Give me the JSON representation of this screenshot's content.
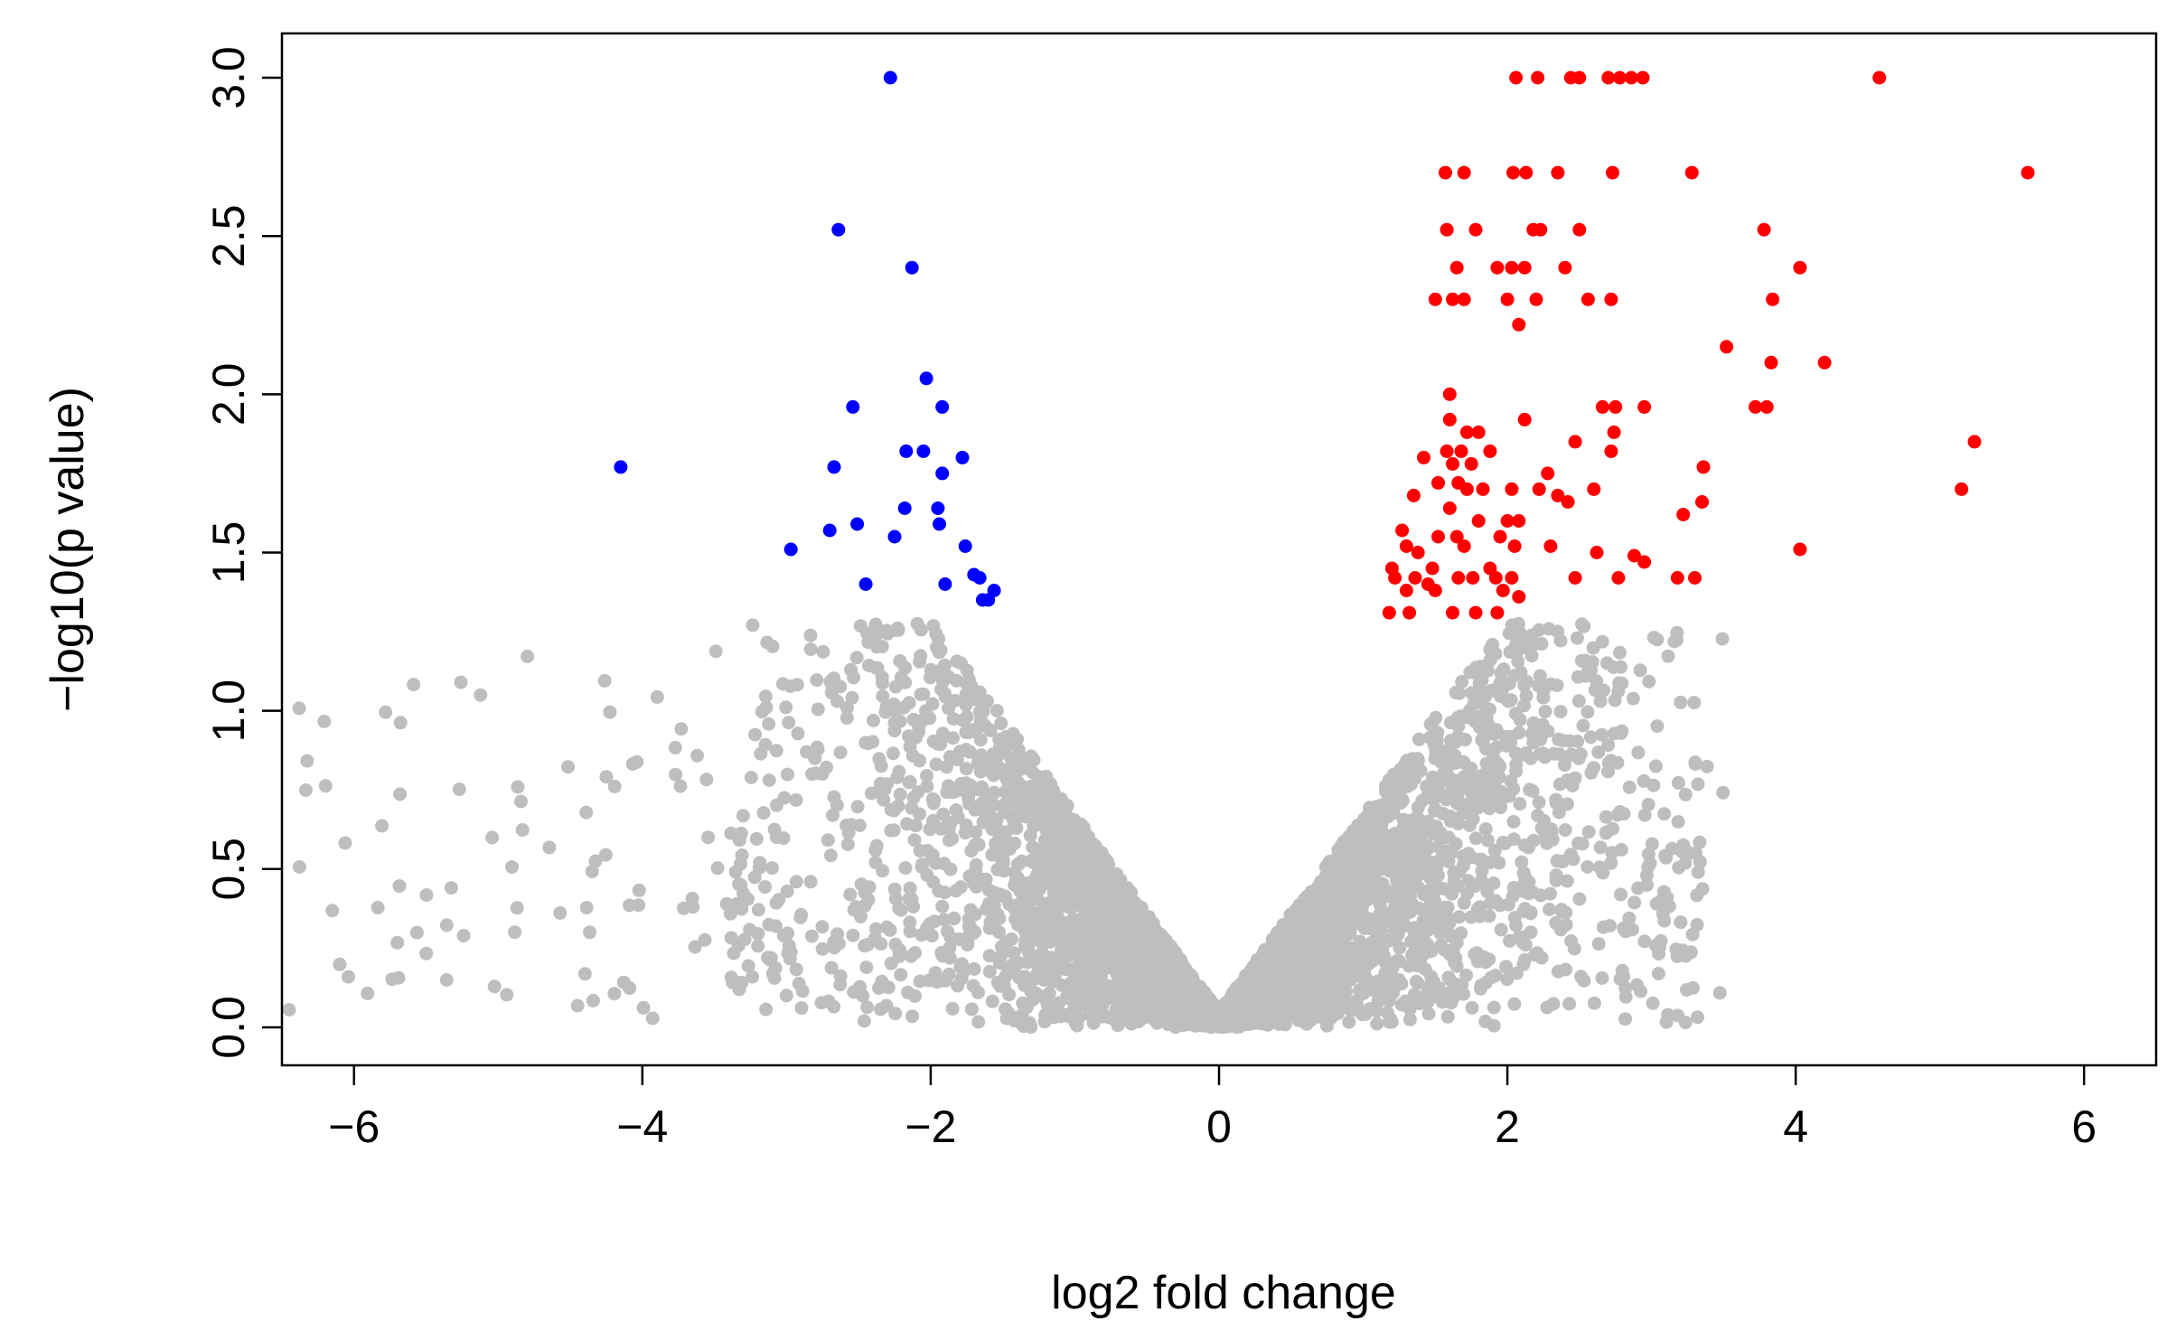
{
  "chart_data": {
    "type": "scatter",
    "title": "",
    "xlabel": "log2 fold change",
    "ylabel": "−log10(p value)",
    "xlim": [
      -6.5,
      6.5
    ],
    "ylim": [
      -0.12,
      3.14
    ],
    "xticks": [
      -6,
      -4,
      -2,
      0,
      2,
      4,
      6
    ],
    "xtick_labels": [
      "−6",
      "−4",
      "−2",
      "0",
      "2",
      "4",
      "6"
    ],
    "yticks": [
      0.0,
      0.5,
      1.0,
      1.5,
      2.0,
      2.5,
      3.0
    ],
    "ytick_labels": [
      "0.0",
      "0.5",
      "1.0",
      "1.5",
      "2.0",
      "2.5",
      "3.0"
    ],
    "grid": false,
    "legend": "none",
    "series": [
      {
        "group": "down",
        "color": "#0000ff",
        "points": [
          [
            -2.28,
            3.0
          ],
          [
            -2.64,
            2.52
          ],
          [
            -2.13,
            2.4
          ],
          [
            -2.03,
            2.05
          ],
          [
            -2.54,
            1.96
          ],
          [
            -1.92,
            1.96
          ],
          [
            -4.15,
            1.77
          ],
          [
            -2.67,
            1.77
          ],
          [
            -2.17,
            1.82
          ],
          [
            -2.05,
            1.82
          ],
          [
            -1.78,
            1.8
          ],
          [
            -1.92,
            1.75
          ],
          [
            -2.18,
            1.64
          ],
          [
            -1.95,
            1.64
          ],
          [
            -2.51,
            1.59
          ],
          [
            -2.7,
            1.57
          ],
          [
            -1.94,
            1.59
          ],
          [
            -2.25,
            1.55
          ],
          [
            -2.97,
            1.51
          ],
          [
            -1.76,
            1.52
          ],
          [
            -2.45,
            1.4
          ],
          [
            -1.9,
            1.4
          ],
          [
            -1.7,
            1.43
          ],
          [
            -1.66,
            1.42
          ],
          [
            -1.56,
            1.38
          ],
          [
            -1.6,
            1.35
          ],
          [
            -1.64,
            1.35
          ]
        ]
      },
      {
        "group": "up",
        "color": "#ff0000",
        "points": [
          [
            2.06,
            3.0
          ],
          [
            2.21,
            3.0
          ],
          [
            2.44,
            3.0
          ],
          [
            2.5,
            3.0
          ],
          [
            2.7,
            3.0
          ],
          [
            2.78,
            3.0
          ],
          [
            2.86,
            3.0
          ],
          [
            2.94,
            3.0
          ],
          [
            4.58,
            3.0
          ],
          [
            1.57,
            2.7
          ],
          [
            1.7,
            2.7
          ],
          [
            2.04,
            2.7
          ],
          [
            2.13,
            2.7
          ],
          [
            2.35,
            2.7
          ],
          [
            2.73,
            2.7
          ],
          [
            3.28,
            2.7
          ],
          [
            5.61,
            2.7
          ],
          [
            1.58,
            2.52
          ],
          [
            1.78,
            2.52
          ],
          [
            2.18,
            2.52
          ],
          [
            2.23,
            2.52
          ],
          [
            2.5,
            2.52
          ],
          [
            3.78,
            2.52
          ],
          [
            1.65,
            2.4
          ],
          [
            1.93,
            2.4
          ],
          [
            2.03,
            2.4
          ],
          [
            2.12,
            2.4
          ],
          [
            2.4,
            2.4
          ],
          [
            4.03,
            2.4
          ],
          [
            1.5,
            2.3
          ],
          [
            1.62,
            2.3
          ],
          [
            1.7,
            2.3
          ],
          [
            2.0,
            2.3
          ],
          [
            2.2,
            2.3
          ],
          [
            2.56,
            2.3
          ],
          [
            2.72,
            2.3
          ],
          [
            3.84,
            2.3
          ],
          [
            2.08,
            2.22
          ],
          [
            3.52,
            2.15
          ],
          [
            3.83,
            2.1
          ],
          [
            4.2,
            2.1
          ],
          [
            1.6,
            2.0
          ],
          [
            2.66,
            1.96
          ],
          [
            2.75,
            1.96
          ],
          [
            2.95,
            1.96
          ],
          [
            3.72,
            1.96
          ],
          [
            3.8,
            1.96
          ],
          [
            1.6,
            1.92
          ],
          [
            2.12,
            1.92
          ],
          [
            1.72,
            1.88
          ],
          [
            1.8,
            1.88
          ],
          [
            2.74,
            1.88
          ],
          [
            2.47,
            1.85
          ],
          [
            5.24,
            1.85
          ],
          [
            1.58,
            1.82
          ],
          [
            1.68,
            1.82
          ],
          [
            1.88,
            1.82
          ],
          [
            2.72,
            1.82
          ],
          [
            1.42,
            1.8
          ],
          [
            1.62,
            1.78
          ],
          [
            1.75,
            1.78
          ],
          [
            2.28,
            1.75
          ],
          [
            3.36,
            1.77
          ],
          [
            1.52,
            1.72
          ],
          [
            1.66,
            1.72
          ],
          [
            1.72,
            1.7
          ],
          [
            1.83,
            1.7
          ],
          [
            2.03,
            1.7
          ],
          [
            2.22,
            1.7
          ],
          [
            2.6,
            1.7
          ],
          [
            5.15,
            1.7
          ],
          [
            1.35,
            1.68
          ],
          [
            2.35,
            1.68
          ],
          [
            2.42,
            1.66
          ],
          [
            3.35,
            1.66
          ],
          [
            1.6,
            1.64
          ],
          [
            1.8,
            1.6
          ],
          [
            2.0,
            1.6
          ],
          [
            2.08,
            1.6
          ],
          [
            3.22,
            1.62
          ],
          [
            1.27,
            1.57
          ],
          [
            1.52,
            1.55
          ],
          [
            1.65,
            1.55
          ],
          [
            1.95,
            1.55
          ],
          [
            1.3,
            1.52
          ],
          [
            1.7,
            1.52
          ],
          [
            2.05,
            1.52
          ],
          [
            2.3,
            1.52
          ],
          [
            2.62,
            1.5
          ],
          [
            1.38,
            1.5
          ],
          [
            4.03,
            1.51
          ],
          [
            2.88,
            1.49
          ],
          [
            2.95,
            1.47
          ],
          [
            1.2,
            1.45
          ],
          [
            1.48,
            1.45
          ],
          [
            1.88,
            1.45
          ],
          [
            1.22,
            1.42
          ],
          [
            1.36,
            1.42
          ],
          [
            1.45,
            1.4
          ],
          [
            1.66,
            1.42
          ],
          [
            1.76,
            1.42
          ],
          [
            1.92,
            1.42
          ],
          [
            2.03,
            1.42
          ],
          [
            2.47,
            1.42
          ],
          [
            2.77,
            1.42
          ],
          [
            3.18,
            1.42
          ],
          [
            3.3,
            1.42
          ],
          [
            1.3,
            1.38
          ],
          [
            1.5,
            1.38
          ],
          [
            1.97,
            1.38
          ],
          [
            2.08,
            1.36
          ],
          [
            1.18,
            1.31
          ],
          [
            1.32,
            1.31
          ],
          [
            1.62,
            1.31
          ],
          [
            1.78,
            1.31
          ],
          [
            1.93,
            1.31
          ]
        ]
      }
    ],
    "background_points": {
      "color": "#bebebe",
      "count": 4200,
      "note_generated": false
    }
  }
}
